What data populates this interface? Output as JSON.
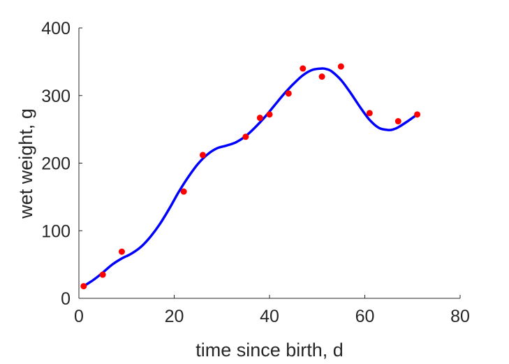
{
  "chart_data": {
    "type": "scatter",
    "title": "",
    "xlabel": "time since birth, d",
    "ylabel": "wet weight, g",
    "xlim": [
      0,
      80
    ],
    "ylim": [
      0,
      400
    ],
    "xticks": [
      0,
      20,
      40,
      60,
      80
    ],
    "yticks": [
      0,
      100,
      200,
      300,
      400
    ],
    "grid": false,
    "series": [
      {
        "kind": "points",
        "color": "#ff0000",
        "x": [
          1,
          5,
          9,
          22,
          26,
          35,
          38,
          40,
          44,
          47,
          51,
          55,
          61,
          67,
          71
        ],
        "y": [
          18,
          35,
          69,
          158,
          212,
          239,
          267,
          272,
          303,
          340,
          328,
          343,
          274,
          262,
          272
        ]
      },
      {
        "kind": "line",
        "color": "#0000ff",
        "x": [
          1,
          3,
          5,
          7,
          9,
          11,
          13,
          15,
          17,
          19,
          21,
          23,
          25,
          27,
          29,
          31,
          33,
          35,
          37,
          39,
          41,
          43,
          45,
          47,
          49,
          51,
          52,
          53,
          55,
          57,
          59,
          61,
          63,
          65,
          66,
          67,
          69,
          71
        ],
        "y": [
          18,
          27,
          38,
          50,
          59,
          66,
          76,
          91,
          110,
          133,
          158,
          180,
          199,
          213,
          222,
          226,
          231,
          240,
          253,
          268,
          285,
          302,
          317,
          330,
          338,
          340,
          339,
          336,
          323,
          304,
          283,
          264,
          252,
          249,
          250,
          253,
          262,
          272
        ]
      }
    ]
  }
}
